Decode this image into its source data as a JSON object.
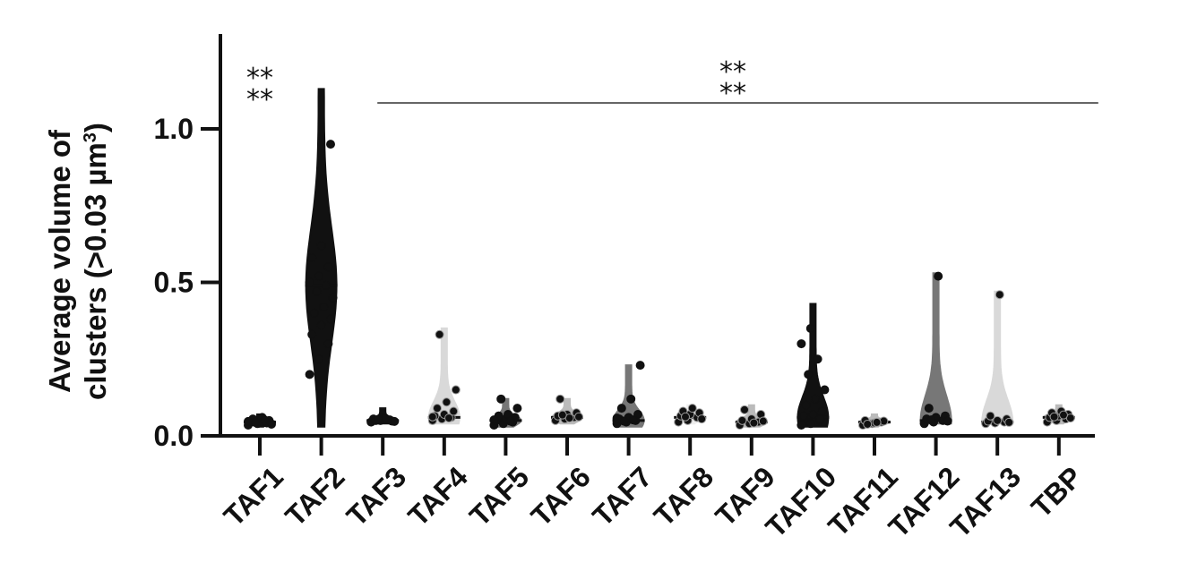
{
  "chart_data": {
    "type": "violin",
    "ylabel_line1": "Average volume of",
    "ylabel_line2": "clusters (>0.03 µm",
    "ylabel_sup": "3",
    "ylabel_close": ")",
    "ylim": [
      0,
      1.3
    ],
    "yticks": [
      {
        "value": 0.0,
        "label": "0.0"
      },
      {
        "value": 0.5,
        "label": "0.5"
      },
      {
        "value": 1.0,
        "label": "1.0"
      }
    ],
    "categories": [
      "TAF1",
      "TAF2",
      "TAF3",
      "TAF4",
      "TAF5",
      "TAF6",
      "TAF7",
      "TAF8",
      "TAF9",
      "TAF10",
      "TAF11",
      "TAF12",
      "TAF13",
      "TBP"
    ],
    "series": [
      {
        "category": "TAF1",
        "color": "#111111",
        "min": 0.03,
        "max": 0.07,
        "median": 0.045,
        "points": [
          0.035,
          0.04,
          0.042,
          0.045,
          0.048,
          0.05,
          0.055,
          0.06,
          0.038,
          0.044,
          0.052,
          0.047
        ]
      },
      {
        "category": "TAF2",
        "color": "#111111",
        "min": 0.03,
        "max": 1.13,
        "median": 0.49,
        "points": [
          0.2,
          0.25,
          0.3,
          0.33,
          0.36,
          0.38,
          0.4,
          0.42,
          0.45,
          0.47,
          0.49,
          0.5,
          0.52,
          0.55,
          0.58,
          0.62,
          0.95
        ]
      },
      {
        "category": "TAF3",
        "color": "#111111",
        "min": 0.04,
        "max": 0.09,
        "median": 0.05,
        "points": [
          0.045,
          0.05,
          0.052,
          0.055,
          0.06,
          0.048,
          0.05,
          0.058,
          0.047,
          0.053
        ]
      },
      {
        "category": "TAF4",
        "color": "#d9d9d9",
        "min": 0.04,
        "max": 0.35,
        "median": 0.06,
        "points": [
          0.05,
          0.055,
          0.06,
          0.065,
          0.07,
          0.08,
          0.09,
          0.11,
          0.15,
          0.33,
          0.058,
          0.062
        ]
      },
      {
        "category": "TAF5",
        "color": "#777777",
        "min": 0.03,
        "max": 0.12,
        "median": 0.05,
        "points": [
          0.035,
          0.04,
          0.045,
          0.05,
          0.055,
          0.06,
          0.065,
          0.07,
          0.09,
          0.12,
          0.048,
          0.052
        ]
      },
      {
        "category": "TAF6",
        "color": "#bbbbbb",
        "min": 0.04,
        "max": 0.12,
        "median": 0.06,
        "points": [
          0.05,
          0.055,
          0.06,
          0.065,
          0.07,
          0.075,
          0.12,
          0.058,
          0.062,
          0.068
        ]
      },
      {
        "category": "TAF7",
        "color": "#777777",
        "min": 0.03,
        "max": 0.23,
        "median": 0.05,
        "points": [
          0.04,
          0.045,
          0.05,
          0.055,
          0.06,
          0.07,
          0.09,
          0.12,
          0.23,
          0.048,
          0.052,
          0.058
        ]
      },
      {
        "category": "TAF8",
        "color": "#eeeeee",
        "min": 0.04,
        "max": 0.1,
        "median": 0.06,
        "points": [
          0.045,
          0.05,
          0.06,
          0.065,
          0.07,
          0.075,
          0.08,
          0.09,
          0.055,
          0.062
        ]
      },
      {
        "category": "TAF9",
        "color": "#bbbbbb",
        "min": 0.03,
        "max": 0.1,
        "median": 0.045,
        "points": [
          0.035,
          0.04,
          0.045,
          0.05,
          0.055,
          0.07,
          0.085,
          0.042,
          0.048
        ]
      },
      {
        "category": "TAF10",
        "color": "#111111",
        "min": 0.03,
        "max": 0.43,
        "median": 0.06,
        "points": [
          0.035,
          0.04,
          0.05,
          0.06,
          0.07,
          0.08,
          0.1,
          0.12,
          0.15,
          0.2,
          0.25,
          0.3,
          0.35,
          0.055,
          0.065
        ]
      },
      {
        "category": "TAF11",
        "color": "#bbbbbb",
        "min": 0.03,
        "max": 0.07,
        "median": 0.045,
        "points": [
          0.035,
          0.04,
          0.045,
          0.05,
          0.042,
          0.048,
          0.038,
          0.044
        ]
      },
      {
        "category": "TAF12",
        "color": "#777777",
        "min": 0.04,
        "max": 0.53,
        "median": 0.05,
        "points": [
          0.04,
          0.045,
          0.05,
          0.055,
          0.06,
          0.065,
          0.09,
          0.52,
          0.048,
          0.052
        ]
      },
      {
        "category": "TAF13",
        "color": "#d9d9d9",
        "min": 0.04,
        "max": 0.47,
        "median": 0.045,
        "points": [
          0.04,
          0.042,
          0.045,
          0.048,
          0.05,
          0.055,
          0.065,
          0.46,
          0.044
        ]
      },
      {
        "category": "TBP",
        "color": "#bbbbbb",
        "min": 0.04,
        "max": 0.1,
        "median": 0.06,
        "points": [
          0.045,
          0.05,
          0.055,
          0.06,
          0.065,
          0.07,
          0.075,
          0.08,
          0.058,
          0.062,
          0.068
        ]
      }
    ],
    "annotations": [
      {
        "text_line1": "**",
        "text_line2": "**",
        "category": "TAF1"
      },
      {
        "text_line1": "**",
        "text_line2": "**",
        "from": "TAF3",
        "to": "TBP"
      }
    ]
  }
}
